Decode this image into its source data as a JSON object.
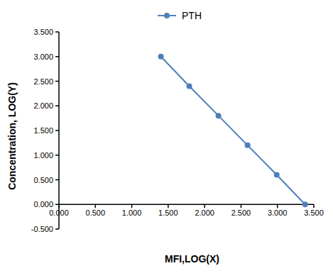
{
  "chart_data": {
    "type": "line",
    "x_label": "MFI,LOG(X)",
    "y_label": "Concentration,  LOG(Y)",
    "x": [
      1.4,
      1.79,
      2.19,
      2.59,
      2.99,
      3.38
    ],
    "series": [
      {
        "name": "PTH",
        "color": "#4f7fba",
        "values": [
          3.0,
          2.4,
          1.8,
          1.2,
          0.6,
          0.0
        ],
        "marker": "circle",
        "line_style": "solid"
      }
    ],
    "xlim": [
      0,
      3.5
    ],
    "xticks": [
      {
        "value": 0,
        "label": "0.000"
      },
      {
        "value": 0.5,
        "label": "0.500"
      },
      {
        "value": 1,
        "label": "1.000"
      },
      {
        "value": 1.5,
        "label": "1.500"
      },
      {
        "value": 2,
        "label": "2.000"
      },
      {
        "value": 2.5,
        "label": "2.500"
      },
      {
        "value": 3,
        "label": "3.000"
      },
      {
        "value": 3.5,
        "label": "3.500"
      }
    ],
    "ylim": [
      -0.5,
      3.5
    ],
    "yticks": [
      {
        "value": -0.5,
        "label": "-0.500"
      },
      {
        "value": 0,
        "label": "0.000"
      },
      {
        "value": 0.5,
        "label": "0.500"
      },
      {
        "value": 1,
        "label": "1.000"
      },
      {
        "value": 1.5,
        "label": "1.500"
      },
      {
        "value": 2,
        "label": "2.000"
      },
      {
        "value": 2.5,
        "label": "2.500"
      },
      {
        "value": 3,
        "label": "3.000"
      },
      {
        "value": 3.5,
        "label": "3.500"
      }
    ],
    "grid": false,
    "legend": "top"
  }
}
